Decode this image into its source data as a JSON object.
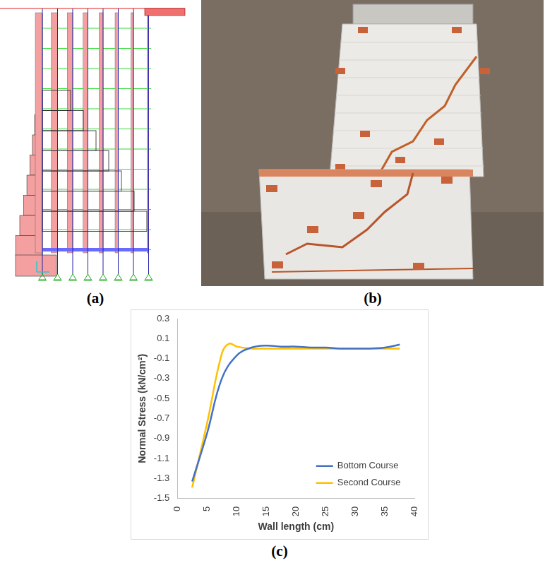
{
  "panels": {
    "a": {
      "label": "(a)"
    },
    "b": {
      "label": "(b)"
    }
  },
  "chart_data": {
    "label": "(c)",
    "type": "line",
    "x_label": "Wall length (cm)",
    "y_label": "Normal Stress (kN/cm²)",
    "xlim": [
      0,
      40
    ],
    "xticks": [
      0,
      5,
      10,
      15,
      20,
      25,
      30,
      35,
      40
    ],
    "ylim": [
      -1.5,
      0.3
    ],
    "yticks": [
      -1.5,
      -1.3,
      -1.1,
      -0.9,
      -0.7,
      -0.5,
      -0.3,
      -0.1,
      0.1,
      0.3
    ],
    "grid": false,
    "legend": "lower right",
    "series": [
      {
        "name": "Bottom Course",
        "color": "#4472c4",
        "line_style": "solid",
        "x": [
          2.5,
          5,
          7.5,
          10,
          12.5,
          15,
          17.5,
          20,
          22.5,
          25,
          27.5,
          30,
          32.5,
          35,
          37.5
        ],
        "values": [
          -1.33,
          -0.85,
          -0.3,
          -0.07,
          0.01,
          0.03,
          0.02,
          0.02,
          0.01,
          0.01,
          0.0,
          0.0,
          0.0,
          0.01,
          0.04
        ]
      },
      {
        "name": "Second Course",
        "color": "#ffc000",
        "line_style": "solid",
        "x": [
          2.5,
          5,
          7.5,
          8.75,
          10,
          12.5,
          15,
          20,
          25,
          30,
          35,
          37.5
        ],
        "values": [
          -1.39,
          -0.75,
          -0.05,
          0.05,
          0.02,
          0.0,
          0.0,
          0.0,
          0.0,
          0.0,
          0.0,
          0.0
        ]
      }
    ]
  }
}
